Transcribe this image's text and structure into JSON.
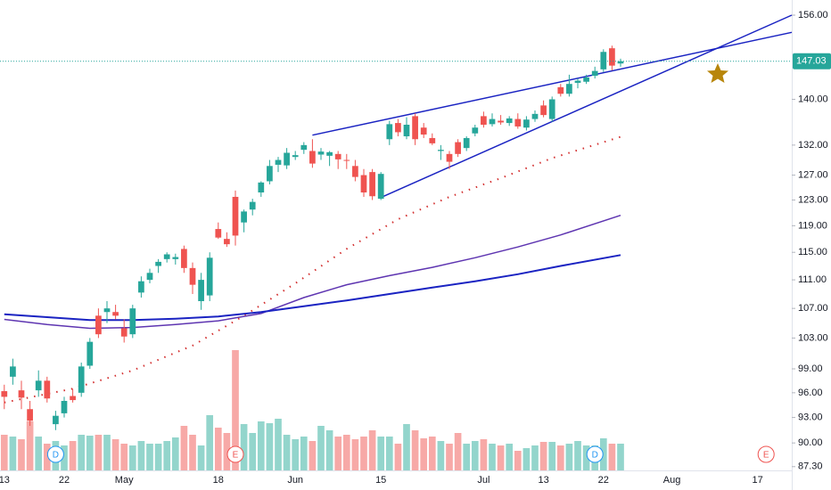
{
  "chart_data": {
    "type": "candlestick",
    "categories": [
      "13",
      null,
      null,
      null,
      null,
      null,
      null,
      "22",
      null,
      null,
      null,
      null,
      null,
      null,
      "May",
      null,
      null,
      null,
      null,
      null,
      null,
      null,
      null,
      null,
      null,
      "18",
      null,
      null,
      null,
      null,
      null,
      null,
      null,
      null,
      "Jun",
      null,
      null,
      null,
      null,
      null,
      null,
      null,
      null,
      null,
      "15",
      null,
      null,
      null,
      null,
      null,
      null,
      null,
      null,
      null,
      null,
      null,
      "Jul",
      null,
      null,
      null,
      null,
      null,
      null,
      "13",
      null,
      null,
      null,
      null,
      null,
      null,
      "22",
      null,
      null,
      null,
      null,
      null,
      null,
      null,
      "Aug",
      null,
      null,
      null,
      null,
      null,
      null,
      null,
      null,
      null,
      "17",
      null,
      null,
      null
    ],
    "xlim": [
      -0.5,
      92
    ],
    "open": [
      96.2,
      98,
      96.3,
      94,
      96.3,
      97.5,
      92.2,
      93.5,
      95.6,
      96,
      99.4,
      106,
      106.5,
      106.5,
      104.3,
      103.5,
      109.2,
      111,
      113,
      114,
      114,
      115.5,
      112.7,
      108,
      108.8,
      118.5,
      117,
      123.5,
      119.5,
      121.5,
      124.2,
      126,
      128.7,
      128.6,
      130,
      131.2,
      131,
      130.4,
      130.2,
      130.5,
      129.5,
      128.5,
      127,
      127.5,
      123.2,
      133,
      135.8,
      133.5,
      137,
      135,
      133.2,
      131,
      130.5,
      132.5,
      131.5,
      134,
      137,
      135.6,
      136.2,
      135.8,
      136.5,
      135,
      136.5,
      138.9,
      136.5,
      142.2,
      141,
      143,
      143.2,
      144.3,
      145.5,
      149.5,
      146.6,
      null,
      null,
      null,
      null,
      null,
      null,
      null,
      null,
      null,
      null,
      null,
      null,
      null,
      null,
      null,
      null,
      null,
      null,
      null
    ],
    "high": [
      97,
      100.3,
      97.5,
      95,
      98.8,
      98,
      93.8,
      95.5,
      96.5,
      99.8,
      103,
      107,
      108,
      107.5,
      105.5,
      107.5,
      111.5,
      112.6,
      114,
      115,
      114.8,
      116,
      113.5,
      112,
      115,
      119.5,
      118,
      124.5,
      121.5,
      123.2,
      126,
      129.5,
      130,
      131.5,
      131,
      132.5,
      133,
      131.5,
      131,
      131,
      130.5,
      129.5,
      128,
      128,
      127.5,
      136.2,
      136.5,
      136.8,
      137.5,
      135.8,
      134,
      132,
      131,
      133,
      133.5,
      135.5,
      137.8,
      137.5,
      137.2,
      137,
      137.5,
      137,
      138,
      139.8,
      140.5,
      142.8,
      144.5,
      143.8,
      144.5,
      146,
      149.3,
      150,
      147.5,
      null,
      null,
      null,
      null,
      null,
      null,
      null,
      null,
      null,
      null,
      null,
      null,
      null,
      null,
      null,
      null,
      null,
      null,
      null
    ],
    "low": [
      94,
      97,
      94,
      92,
      95.5,
      94.8,
      91.5,
      93,
      94.8,
      95.5,
      99,
      103,
      105,
      105.5,
      102.4,
      103,
      108.5,
      110.5,
      112,
      113.5,
      113.2,
      112,
      109,
      106.8,
      108,
      117,
      115.8,
      116,
      118,
      120.6,
      123.5,
      125.5,
      127.5,
      128,
      129.5,
      130.5,
      128.2,
      129.5,
      128.5,
      128,
      128,
      126,
      123.5,
      123,
      123,
      132,
      133.5,
      133,
      132,
      133.2,
      132,
      129.5,
      128,
      130,
      131,
      133.5,
      135,
      135.2,
      135.5,
      135.3,
      134.8,
      134.5,
      136,
      136.8,
      136,
      140.5,
      140.5,
      142,
      142.8,
      143.8,
      145,
      145.3,
      146,
      null,
      null,
      null,
      null,
      null,
      null,
      null,
      null,
      null,
      null,
      null,
      null,
      null,
      null,
      null,
      null,
      null,
      null,
      null
    ],
    "close": [
      95.5,
      99.3,
      95.4,
      92.6,
      97.5,
      95.3,
      93.2,
      95,
      95.1,
      99.3,
      102.5,
      103.5,
      107,
      106,
      103.2,
      107,
      110.8,
      112,
      113.6,
      114.7,
      114.3,
      112.7,
      110.3,
      111,
      114.2,
      117.2,
      116.2,
      117.5,
      121.2,
      122.7,
      125.8,
      128.5,
      129.5,
      130.7,
      130.3,
      132,
      128.9,
      130.9,
      130.8,
      129.6,
      129.4,
      126.7,
      124.2,
      123.6,
      127.2,
      135.6,
      134.2,
      135.5,
      133,
      133.8,
      132.3,
      131.2,
      129.2,
      130.5,
      133.2,
      135,
      135.5,
      136.5,
      135.9,
      136.6,
      135.2,
      136.4,
      137.4,
      137.2,
      140,
      141,
      142.8,
      143.4,
      144,
      145.2,
      148.8,
      146.2,
      147.03,
      null,
      null,
      null,
      null,
      null,
      null,
      null,
      null,
      null,
      null,
      null,
      null,
      null,
      null,
      null,
      null,
      null,
      null,
      null
    ],
    "volume": [
      40,
      38,
      35,
      55,
      38,
      30,
      33,
      28,
      33,
      40,
      39,
      40,
      40,
      35,
      30,
      28,
      33,
      30,
      30,
      33,
      37,
      50,
      40,
      28,
      62,
      48,
      42,
      135,
      52,
      42,
      55,
      53,
      58,
      40,
      35,
      38,
      33,
      50,
      45,
      38,
      40,
      35,
      38,
      45,
      38,
      38,
      30,
      52,
      45,
      36,
      38,
      33,
      30,
      42,
      30,
      33,
      35,
      30,
      28,
      30,
      22,
      25,
      28,
      32,
      32,
      28,
      30,
      33,
      28,
      28,
      36,
      30,
      30,
      null,
      null,
      null,
      null,
      null,
      null,
      null,
      null,
      null,
      null,
      null,
      null,
      null,
      null,
      null,
      null,
      null,
      null,
      null
    ],
    "up_color": "#26a69a",
    "down_color": "#ef5350",
    "volume_up_color": "#93d5cc",
    "volume_down_color": "#f7a9a7",
    "lines": [
      {
        "color": "#d32f2f",
        "style": "dotted",
        "x": [
          0,
          8,
          15,
          22,
          28,
          34,
          40,
          46,
          52,
          58,
          64,
          72
        ],
        "values": [
          94.8,
          96.5,
          98.8,
          102,
          106,
          110.5,
          115.5,
          120,
          123.5,
          126.5,
          129.8,
          133.4
        ]
      },
      {
        "color": "#5e35b1",
        "style": "solid",
        "x": [
          0,
          5,
          10,
          15,
          20,
          25,
          30,
          35,
          40,
          45,
          50,
          55,
          60,
          65,
          72
        ],
        "values": [
          105.5,
          104.8,
          104.3,
          104.4,
          104.8,
          105.3,
          106.3,
          108.5,
          110.3,
          111.6,
          112.8,
          114.2,
          115.8,
          117.6,
          120.6
        ]
      },
      {
        "color": "#1a23c2",
        "style": "thick",
        "x": [
          0,
          5,
          10,
          15,
          20,
          25,
          30,
          35,
          40,
          45,
          50,
          55,
          60,
          65,
          72
        ],
        "values": [
          106.2,
          105.8,
          105.4,
          105.4,
          105.6,
          105.9,
          106.5,
          107.3,
          108.1,
          109,
          109.9,
          110.8,
          111.8,
          113,
          114.6
        ]
      },
      {
        "color": "#1a23c2",
        "style": "solid",
        "x": [
          36,
          92
        ],
        "values": [
          133.7,
          152.6
        ]
      },
      {
        "color": "#1a23c2",
        "style": "solid",
        "x": [
          44,
          92
        ],
        "values": [
          123.4,
          156
        ]
      }
    ],
    "last_price": {
      "value": 147.03,
      "label": "147.03",
      "color": "#26a69a"
    },
    "events": [
      {
        "label": "D",
        "x": 6,
        "color": "#2196f3"
      },
      {
        "label": "E",
        "x": 27,
        "color": "#ef5350"
      },
      {
        "label": "D",
        "x": 69,
        "color": "#2196f3"
      },
      {
        "label": "E",
        "x": 89,
        "color": "#ef5350"
      }
    ],
    "log_scale": true,
    "ylim": [
      86.88,
      159.07
    ],
    "yticks": [
      {
        "value": 87.3,
        "label": "87.30"
      },
      {
        "value": 90,
        "label": "90.00"
      },
      {
        "value": 93,
        "label": "93.00"
      },
      {
        "value": 96,
        "label": "96.00"
      },
      {
        "value": 99,
        "label": "99.00"
      },
      {
        "value": 103,
        "label": "103.00"
      },
      {
        "value": 107,
        "label": "107.00"
      },
      {
        "value": 111,
        "label": "111.00"
      },
      {
        "value": 115,
        "label": "115.00"
      },
      {
        "value": 119,
        "label": "119.00"
      },
      {
        "value": 123,
        "label": "123.00"
      },
      {
        "value": 127,
        "label": "127.00"
      },
      {
        "value": 132,
        "label": "132.00"
      },
      {
        "value": 140,
        "label": "140.00"
      },
      {
        "value": 156,
        "label": "156.00"
      }
    ],
    "grid": false
  }
}
